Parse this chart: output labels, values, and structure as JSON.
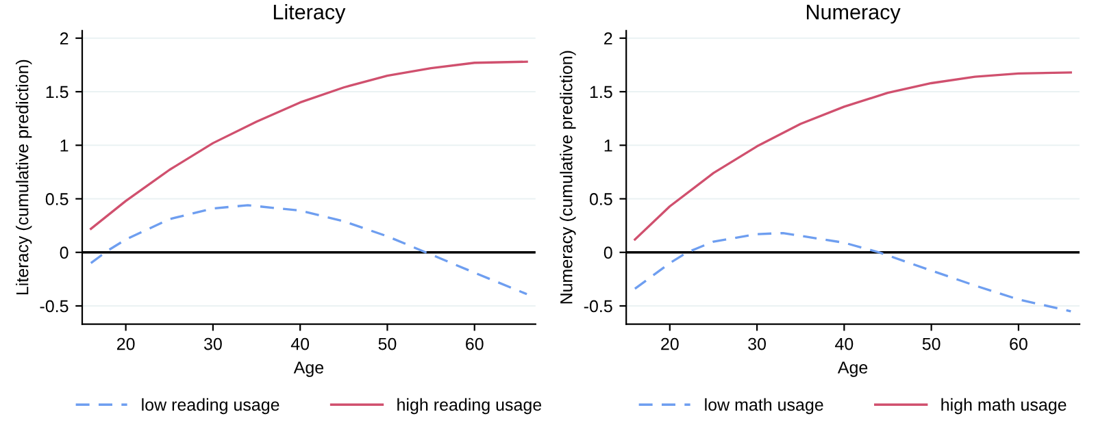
{
  "chart_data": [
    {
      "type": "line",
      "title": "Literacy",
      "xlabel": "Age",
      "ylabel": "Literacy (cumulative prediction)",
      "xlim": [
        15,
        67
      ],
      "ylim": [
        -0.67,
        2.07
      ],
      "xticks": [
        20,
        30,
        40,
        50,
        60
      ],
      "yticks": [
        {
          "value": -0.5,
          "label": "-0.5"
        },
        0,
        0.5,
        1,
        1.5,
        2
      ],
      "grid": "y",
      "legend": "bottom",
      "ref_lines": [
        {
          "axis": "y",
          "value": 0,
          "color": "#000000"
        }
      ],
      "series": [
        {
          "name": "low reading usage",
          "color": "#6e9ef0",
          "line_style": "dashed",
          "x": [
            16,
            18,
            20,
            25,
            30,
            34,
            40,
            45,
            50,
            55,
            60,
            66
          ],
          "values": [
            -0.1,
            0.02,
            0.12,
            0.31,
            0.41,
            0.44,
            0.39,
            0.29,
            0.15,
            -0.02,
            -0.19,
            -0.39
          ]
        },
        {
          "name": "high reading usage",
          "color": "#d0506e",
          "line_style": "solid",
          "x": [
            16,
            20,
            25,
            30,
            35,
            40,
            45,
            50,
            55,
            60,
            66
          ],
          "values": [
            0.22,
            0.48,
            0.77,
            1.02,
            1.22,
            1.4,
            1.54,
            1.65,
            1.72,
            1.77,
            1.78
          ]
        }
      ]
    },
    {
      "type": "line",
      "title": "Numeracy",
      "xlabel": "Age",
      "ylabel": "Numeracy (cumulative prediction)",
      "xlim": [
        15,
        67
      ],
      "ylim": [
        -0.67,
        2.07
      ],
      "xticks": [
        20,
        30,
        40,
        50,
        60
      ],
      "yticks": [
        {
          "value": -0.5,
          "label": "-0.5"
        },
        0,
        0.5,
        1,
        1.5,
        2
      ],
      "grid": "y",
      "legend": "bottom",
      "ref_lines": [
        {
          "axis": "y",
          "value": 0,
          "color": "#000000"
        }
      ],
      "series": [
        {
          "name": "low math usage",
          "color": "#6e9ef0",
          "line_style": "dashed",
          "x": [
            16,
            20,
            22,
            25,
            30,
            33,
            40,
            44,
            50,
            55,
            60,
            66
          ],
          "values": [
            -0.34,
            -0.1,
            0.0,
            0.1,
            0.17,
            0.18,
            0.09,
            0.0,
            -0.17,
            -0.31,
            -0.44,
            -0.55
          ]
        },
        {
          "name": "high math usage",
          "color": "#d0506e",
          "line_style": "solid",
          "x": [
            16,
            20,
            25,
            30,
            35,
            40,
            45,
            50,
            55,
            60,
            66
          ],
          "values": [
            0.12,
            0.43,
            0.74,
            0.99,
            1.2,
            1.36,
            1.49,
            1.58,
            1.64,
            1.67,
            1.68
          ]
        }
      ]
    }
  ]
}
